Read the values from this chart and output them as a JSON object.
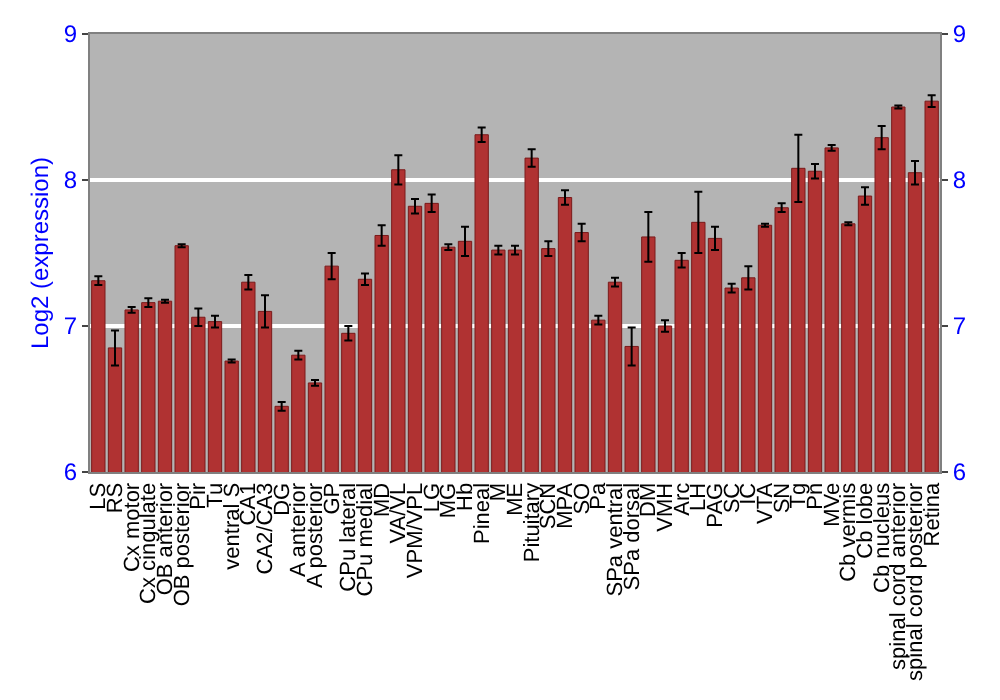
{
  "chart_data": {
    "type": "bar",
    "ylabel": "Log2 (expression)",
    "categories": [
      "LS",
      "RS",
      "Cx motor",
      "Cx cingulate",
      "OB anterior",
      "OB posterior",
      "Pir",
      "Tu",
      "ventral S",
      "CA1",
      "CA2/CA3",
      "DG",
      "A anterior",
      "A posterior",
      "GP",
      "CPu lateral",
      "CPu medial",
      "MD",
      "VA/VL",
      "VPM/VPL",
      "LG",
      "MG",
      "Hb",
      "Pineal",
      "M",
      "ME",
      "Pituitary",
      "SCN",
      "MPA",
      "SO",
      "Pa",
      "SPa ventral",
      "SPa dorsal",
      "DM",
      "VMH",
      "Arc",
      "LH",
      "PAG",
      "SC",
      "IC",
      "VTA",
      "SN",
      "Tg",
      "Pn",
      "MVe",
      "Cb vermis",
      "Cb lobe",
      "Cb nucleus",
      "spinal cord anterior",
      "spinal cord posterior",
      "Retina"
    ],
    "values": [
      7.31,
      6.85,
      7.11,
      7.16,
      7.17,
      7.55,
      7.06,
      7.03,
      6.76,
      7.3,
      7.1,
      6.45,
      6.8,
      6.61,
      7.41,
      6.95,
      7.32,
      7.62,
      8.07,
      7.82,
      7.84,
      7.54,
      7.58,
      8.31,
      7.52,
      7.52,
      8.15,
      7.53,
      7.88,
      7.64,
      7.04,
      7.3,
      6.86,
      7.61,
      7.0,
      7.45,
      7.71,
      7.6,
      7.26,
      7.33,
      7.69,
      7.81,
      8.08,
      8.06,
      8.22,
      7.7,
      7.89,
      8.29,
      8.5,
      8.05,
      8.54
    ],
    "errors": [
      0.03,
      0.12,
      0.02,
      0.03,
      0.01,
      0.01,
      0.06,
      0.04,
      0.01,
      0.05,
      0.11,
      0.03,
      0.03,
      0.02,
      0.09,
      0.05,
      0.04,
      0.07,
      0.1,
      0.05,
      0.06,
      0.02,
      0.1,
      0.05,
      0.03,
      0.03,
      0.06,
      0.05,
      0.05,
      0.06,
      0.03,
      0.03,
      0.13,
      0.17,
      0.04,
      0.05,
      0.21,
      0.08,
      0.03,
      0.08,
      0.01,
      0.03,
      0.23,
      0.05,
      0.02,
      0.01,
      0.06,
      0.08,
      0.01,
      0.08,
      0.04
    ],
    "color": "#b03232",
    "ylim": [
      6,
      9
    ],
    "yticks": [
      6,
      7,
      8,
      9
    ],
    "y2lim": [
      6,
      9
    ],
    "y2ticks": [
      6,
      7,
      8,
      9
    ],
    "grid": "y",
    "legend": false
  }
}
